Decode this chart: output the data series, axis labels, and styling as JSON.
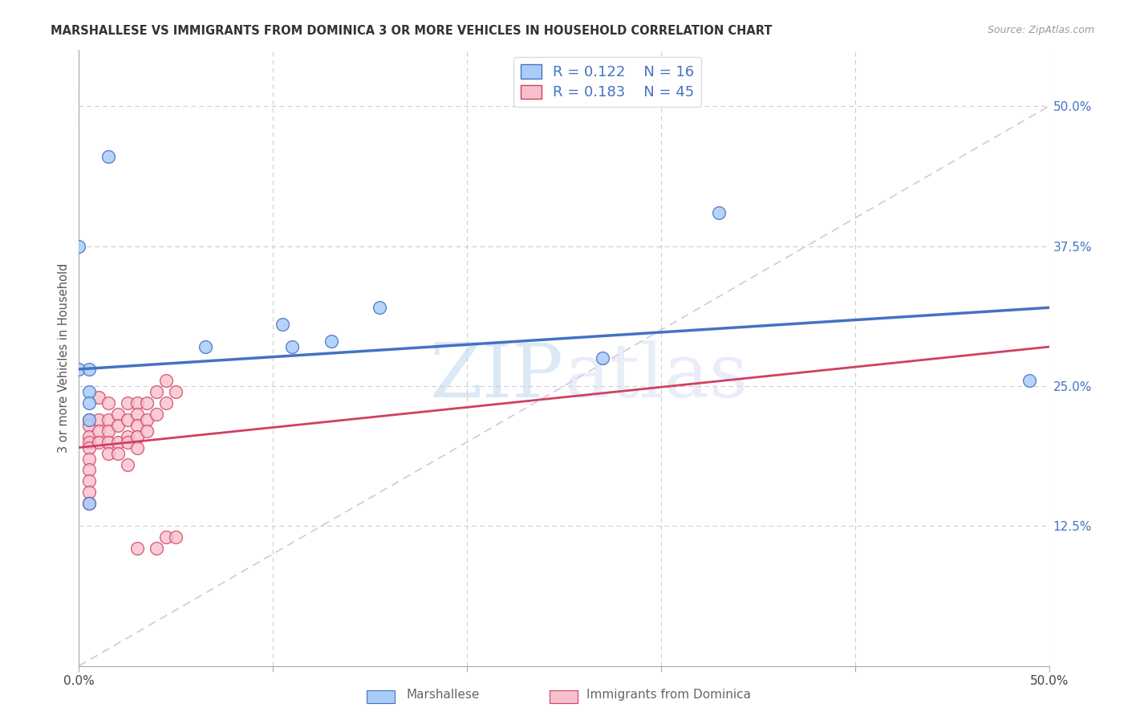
{
  "title": "MARSHALLESE VS IMMIGRANTS FROM DOMINICA 3 OR MORE VEHICLES IN HOUSEHOLD CORRELATION CHART",
  "source": "Source: ZipAtlas.com",
  "ylabel": "3 or more Vehicles in Household",
  "xlabel_blue": "Marshallese",
  "xlabel_pink": "Immigrants from Dominica",
  "xlim": [
    0.0,
    0.5
  ],
  "ylim": [
    0.0,
    0.55
  ],
  "x_ticks": [
    0.0,
    0.1,
    0.2,
    0.3,
    0.4,
    0.5
  ],
  "x_tick_labels": [
    "0.0%",
    "",
    "",
    "",
    "",
    "50.0%"
  ],
  "y_tick_labels_right": [
    "50.0%",
    "37.5%",
    "25.0%",
    "12.5%"
  ],
  "y_ticks_right": [
    0.5,
    0.375,
    0.25,
    0.125
  ],
  "r_blue": 0.122,
  "n_blue": 16,
  "r_pink": 0.183,
  "n_pink": 45,
  "blue_color": "#aaccf8",
  "pink_color": "#f8c0cc",
  "blue_line_color": "#4472c4",
  "pink_line_color": "#d04060",
  "diagonal_color": "#d0c8e0",
  "watermark_zip": "ZIP",
  "watermark_atlas": "atlas",
  "blue_scatter_x": [
    0.015,
    0.0,
    0.0,
    0.065,
    0.105,
    0.11,
    0.13,
    0.155,
    0.005,
    0.005,
    0.005,
    0.005,
    0.005,
    0.27,
    0.33,
    0.49
  ],
  "blue_scatter_y": [
    0.455,
    0.375,
    0.265,
    0.285,
    0.305,
    0.285,
    0.29,
    0.32,
    0.265,
    0.245,
    0.235,
    0.22,
    0.145,
    0.275,
    0.405,
    0.255
  ],
  "pink_scatter_x": [
    0.005,
    0.005,
    0.005,
    0.005,
    0.005,
    0.005,
    0.005,
    0.005,
    0.005,
    0.005,
    0.01,
    0.01,
    0.01,
    0.01,
    0.015,
    0.015,
    0.015,
    0.015,
    0.015,
    0.02,
    0.02,
    0.02,
    0.02,
    0.025,
    0.025,
    0.025,
    0.025,
    0.025,
    0.03,
    0.03,
    0.03,
    0.03,
    0.03,
    0.03,
    0.035,
    0.035,
    0.035,
    0.04,
    0.04,
    0.04,
    0.045,
    0.045,
    0.045,
    0.05,
    0.05
  ],
  "pink_scatter_y": [
    0.22,
    0.215,
    0.205,
    0.2,
    0.195,
    0.185,
    0.175,
    0.165,
    0.155,
    0.145,
    0.24,
    0.22,
    0.21,
    0.2,
    0.235,
    0.22,
    0.21,
    0.2,
    0.19,
    0.225,
    0.215,
    0.2,
    0.19,
    0.235,
    0.22,
    0.205,
    0.2,
    0.18,
    0.235,
    0.225,
    0.215,
    0.205,
    0.195,
    0.105,
    0.235,
    0.22,
    0.21,
    0.245,
    0.225,
    0.105,
    0.255,
    0.235,
    0.115,
    0.245,
    0.115
  ]
}
